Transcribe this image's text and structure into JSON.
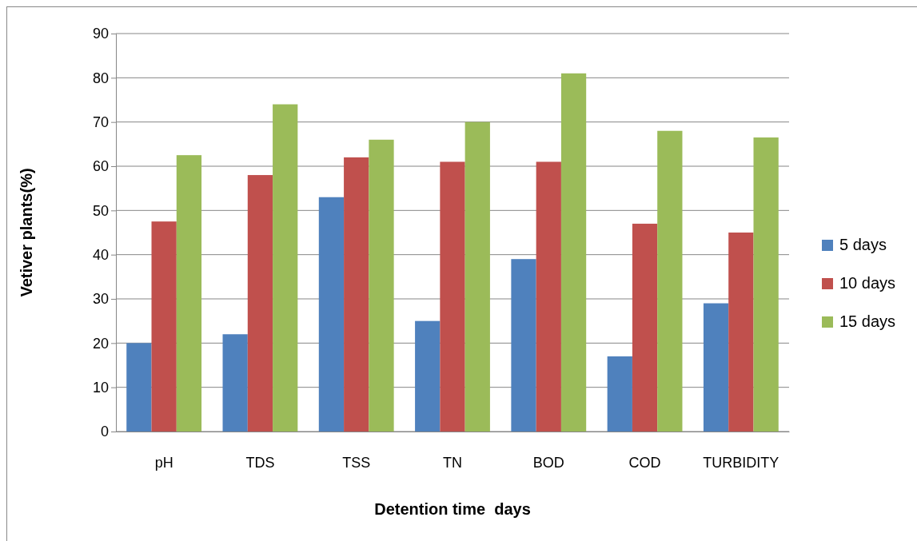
{
  "chart_data": {
    "type": "bar",
    "xlabel": "Detention time  days",
    "ylabel": "Vetiver plants(%)",
    "categories": [
      "pH",
      "TDS",
      "TSS",
      "TN",
      "BOD",
      "COD",
      "TURBIDITY"
    ],
    "series": [
      {
        "name": "5 days",
        "color": "#4f81bd",
        "values": [
          20,
          22,
          53,
          25,
          39,
          17,
          29
        ]
      },
      {
        "name": "10 days",
        "color": "#c0504d",
        "values": [
          47.5,
          58,
          62,
          61,
          61,
          47,
          45
        ]
      },
      {
        "name": "15 days",
        "color": "#9bbb59",
        "values": [
          62.5,
          74,
          66,
          70,
          81,
          68,
          66.5
        ]
      }
    ],
    "ylim": [
      0,
      90
    ],
    "yticks": [
      0,
      10,
      20,
      30,
      40,
      50,
      60,
      70,
      80,
      90
    ],
    "grid": "y",
    "legend": "right"
  }
}
